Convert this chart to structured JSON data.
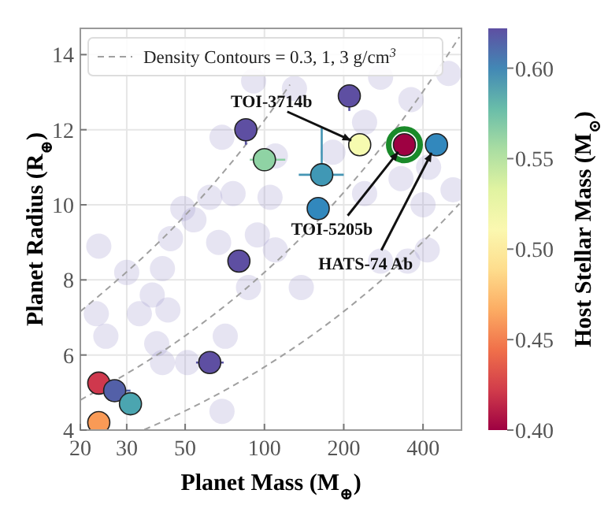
{
  "chart_data": {
    "type": "scatter",
    "xlabel": "Planet Mass (M$_{⊕}$)",
    "ylabel": "Planet Radius (R$_{⊕}$)",
    "clabel": "Host Stellar Mass (M$_{⊙}$)",
    "log": "x",
    "xlim": [
      20,
      560
    ],
    "xticks": [
      20,
      30,
      50,
      100,
      200,
      400
    ],
    "ylim": [
      4,
      14.7
    ],
    "yticks": [
      4,
      6,
      8,
      10,
      12,
      14
    ],
    "clim": [
      0.4,
      0.622
    ],
    "cticks": [
      {
        "value": 0.4,
        "label": "0.40"
      },
      {
        "value": 0.45,
        "label": "0.45"
      },
      {
        "value": 0.5,
        "label": "0.50"
      },
      {
        "value": 0.55,
        "label": "0.55"
      },
      {
        "value": 0.6,
        "label": "0.60"
      }
    ],
    "grid": true,
    "legend": "top",
    "marker": "circle",
    "series": [
      {
        "colors": [
          "#9b93cc",
          "#9b93cc",
          "#9b93cc",
          "#9b93cc",
          "#9b93cc",
          "#9b93cc",
          "#9b93cc",
          "#9b93cc",
          "#9b93cc",
          "#9b93cc",
          "#9b93cc",
          "#9b93cc",
          "#9b93cc",
          "#9b93cc",
          "#9b93cc",
          "#9b93cc",
          "#9b93cc",
          "#9b93cc",
          "#9b93cc",
          "#9b93cc",
          "#9b93cc",
          "#9b93cc",
          "#9b93cc",
          "#9b93cc",
          "#9b93cc",
          "#9b93cc",
          "#9b93cc",
          "#9b93cc",
          "#9b93cc",
          "#9b93cc",
          "#9b93cc",
          "#9b93cc",
          "#9b93cc",
          "#9b93cc",
          "#9b93cc",
          "#9b93cc",
          "#9b93cc",
          "#9b93cc",
          "#9b93cc",
          "#9b93cc",
          "#9b93cc"
        ],
        "x": [
          23.5,
          30,
          23,
          25,
          33.5,
          37.5,
          41,
          43,
          39,
          41,
          44,
          49,
          54,
          62,
          51,
          67,
          76,
          69,
          71,
          87,
          94,
          110,
          105,
          110,
          69,
          91,
          130,
          138,
          500,
          360,
          276,
          240,
          420,
          330,
          520,
          400,
          240,
          182,
          415,
          276,
          350
        ],
        "values": [
          8.9,
          8.2,
          7.1,
          6.5,
          7.1,
          7.6,
          8.3,
          7.2,
          6.3,
          5.8,
          9.1,
          9.9,
          9.6,
          10.2,
          5.8,
          9.0,
          10.3,
          4.5,
          6.5,
          7.8,
          9.2,
          8.8,
          10.2,
          11.3,
          11.8,
          13.3,
          13.1,
          7.8,
          13.5,
          12.8,
          13.4,
          12.2,
          11.0,
          10.7,
          10.4,
          10.0,
          10.3,
          11.4,
          8.8,
          8.5,
          8.5
        ]
      },
      {
        "type": "line",
        "marker": "none",
        "name": "Density Contours = 0.3, 1, 3 g/cm$^{3}$",
        "color": "#a0a0a0",
        "line_style": "dashed",
        "x": [
          20,
          50,
          100,
          125
        ],
        "values": [
          7.16,
          9.72,
          12.25,
          13.2
        ]
      },
      {
        "type": "line",
        "marker": "none",
        "color": "#a0a0a0",
        "line_style": "dashed",
        "x": [
          20,
          50,
          100,
          200,
          400,
          550
        ],
        "values": [
          4.8,
          6.51,
          8.2,
          10.33,
          13.02,
          14.47
        ]
      },
      {
        "type": "line",
        "marker": "none",
        "color": "#a0a0a0",
        "line_style": "dashed",
        "x": [
          35,
          50,
          100,
          200,
          400,
          550
        ],
        "values": [
          4.01,
          4.51,
          5.68,
          7.16,
          9.02,
          10.03
        ]
      },
      {
        "x": [
          85,
          100,
          210,
          230,
          340,
          450,
          165,
          160,
          80,
          62,
          23.5,
          27,
          31,
          23.5
        ],
        "values": [
          12,
          11.2,
          12.9,
          11.6,
          11.6,
          11.6,
          10.8,
          9.9,
          8.5,
          5.8,
          5.25,
          5.05,
          4.7,
          4.2
        ],
        "cvalues": [
          0.62,
          0.565,
          0.62,
          0.52,
          0.4,
          0.6,
          0.595,
          0.6,
          0.62,
          0.62,
          0.42,
          0.615,
          0.59,
          0.46
        ],
        "colors": [
          "#5e4fa2",
          "#8fd3a4",
          "#5e4fa2",
          "#f6fbb0",
          "#9e0142",
          "#3288bd",
          "#4098b5",
          "#3288bd",
          "#5e4fa2",
          "#5e4fa2",
          "#cf384d",
          "#5360a8",
          "#4ba5b0",
          "#f99a56"
        ],
        "errors": [
          [
            11.6,
            12
          ],
          null,
          [
            12.5,
            12.9
          ],
          null,
          null,
          null,
          [
            10.8,
            12.05
          ],
          null,
          null,
          null,
          null,
          null,
          null,
          null
        ],
        "xerrors": [
          null,
          [
            88,
            120
          ],
          null,
          null,
          null,
          null,
          [
            135,
            200
          ],
          null,
          [
            76,
            86
          ],
          [
            55,
            70
          ],
          [
            21.5,
            25
          ],
          [
            25,
            31
          ],
          null,
          null
        ]
      },
      {
        "color": "#1a8a2a",
        "marker": "circle",
        "x": [
          340
        ],
        "values": [
          11.6
        ]
      }
    ],
    "annotations": [
      {
        "text": "TOI-3714b",
        "x": 230,
        "y": 11.6
      },
      {
        "text": "TOI-5205b",
        "x": 340,
        "y": 11.6
      },
      {
        "text": "HATS-74 Ab",
        "x": 450,
        "y": 11.6
      }
    ]
  }
}
